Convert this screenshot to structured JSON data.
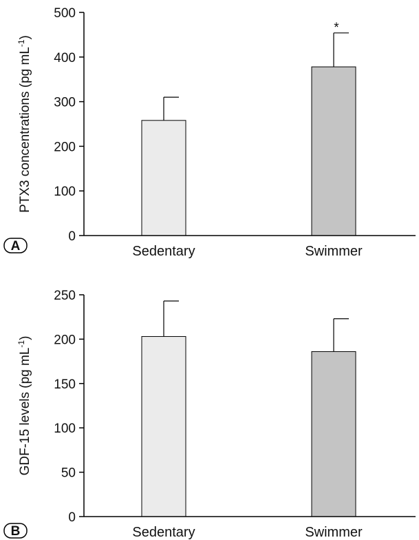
{
  "chart_data": [
    {
      "type": "bar",
      "panel_label": "A",
      "ylabel_text": "PTX3 concentrations (pg mL",
      "ylabel_sup": "-1",
      "ylabel_close": ")",
      "categories": [
        "Sedentary",
        "Swimmer"
      ],
      "values": [
        258,
        378
      ],
      "errors": [
        52,
        76
      ],
      "annotations": [
        "",
        "*"
      ],
      "bar_colors": [
        "#ebebeb",
        "#c4c4c4"
      ],
      "ylim": [
        0,
        500
      ],
      "yticks": [
        0,
        100,
        200,
        300,
        400,
        500
      ],
      "grid": false
    },
    {
      "type": "bar",
      "panel_label": "B",
      "ylabel_text": "GDF-15 levels (pg mL",
      "ylabel_sup": "-1",
      "ylabel_close": ")",
      "categories": [
        "Sedentary",
        "Swimmer"
      ],
      "values": [
        203,
        186
      ],
      "errors": [
        40,
        37
      ],
      "annotations": [
        "",
        ""
      ],
      "bar_colors": [
        "#ebebeb",
        "#c4c4c4"
      ],
      "ylim": [
        0,
        250
      ],
      "yticks": [
        0,
        50,
        100,
        150,
        200,
        250
      ],
      "grid": false
    }
  ]
}
